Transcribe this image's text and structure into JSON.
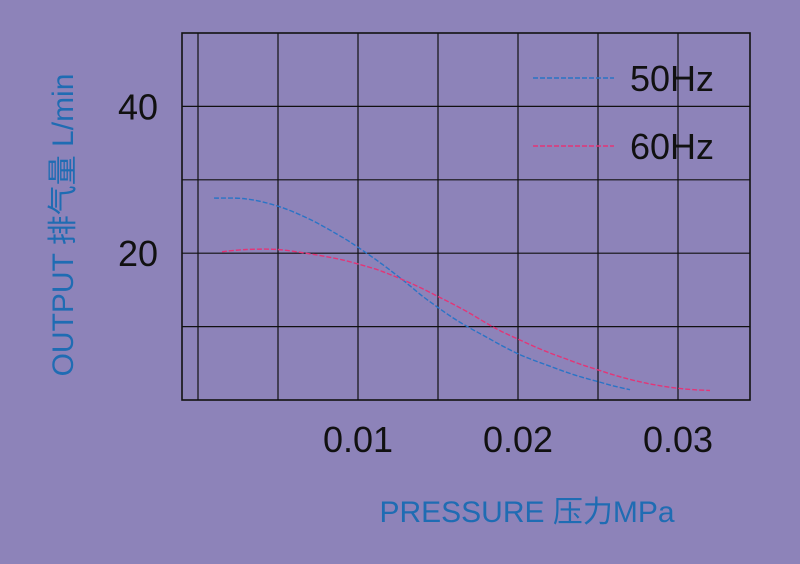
{
  "chart_data": {
    "type": "line",
    "xlabel": "PRESSURE 压力MPa",
    "ylabel": "OUTPUT 排气量 L/min",
    "xlim": [
      -0.001,
      0.0345
    ],
    "ylim": [
      0,
      50
    ],
    "x_ticks": [
      {
        "value": 0.01,
        "label": "0.01"
      },
      {
        "value": 0.02,
        "label": "0.02"
      },
      {
        "value": 0.03,
        "label": "0.03"
      }
    ],
    "y_ticks": [
      {
        "value": 20,
        "label": "20"
      },
      {
        "value": 40,
        "label": "40"
      }
    ],
    "x_gridlines": [
      0.0,
      0.005,
      0.01,
      0.015,
      0.02,
      0.025,
      0.03
    ],
    "y_gridlines": [
      10,
      20,
      30,
      40
    ],
    "grid": true,
    "legend_position": "top-right",
    "series": [
      {
        "name": "50Hz",
        "color": "#2a74c6",
        "x": [
          0.001,
          0.003,
          0.005,
          0.007,
          0.009,
          0.01,
          0.011,
          0.012,
          0.013,
          0.014,
          0.015,
          0.016,
          0.017,
          0.018,
          0.019,
          0.02,
          0.021,
          0.022,
          0.023,
          0.024,
          0.025,
          0.026,
          0.027
        ],
        "y": [
          27.5,
          27.4,
          26.4,
          24.6,
          22.2,
          20.8,
          19.3,
          17.7,
          16.0,
          14.2,
          12.6,
          11.1,
          9.8,
          8.6,
          7.4,
          6.3,
          5.4,
          4.6,
          3.8,
          3.1,
          2.5,
          1.9,
          1.4
        ]
      },
      {
        "name": "60Hz",
        "color": "#e33577",
        "x": [
          0.0015,
          0.003,
          0.005,
          0.007,
          0.009,
          0.011,
          0.012,
          0.013,
          0.014,
          0.015,
          0.016,
          0.017,
          0.018,
          0.019,
          0.02,
          0.021,
          0.022,
          0.023,
          0.024,
          0.025,
          0.026,
          0.027,
          0.028,
          0.029,
          0.03,
          0.031,
          0.032
        ],
        "y": [
          20.2,
          20.5,
          20.5,
          19.9,
          19.1,
          17.9,
          17.1,
          16.2,
          15.2,
          14.1,
          13.0,
          11.8,
          10.5,
          9.3,
          8.3,
          7.3,
          6.4,
          5.6,
          4.8,
          4.1,
          3.4,
          2.8,
          2.3,
          1.9,
          1.6,
          1.4,
          1.3
        ]
      }
    ]
  }
}
